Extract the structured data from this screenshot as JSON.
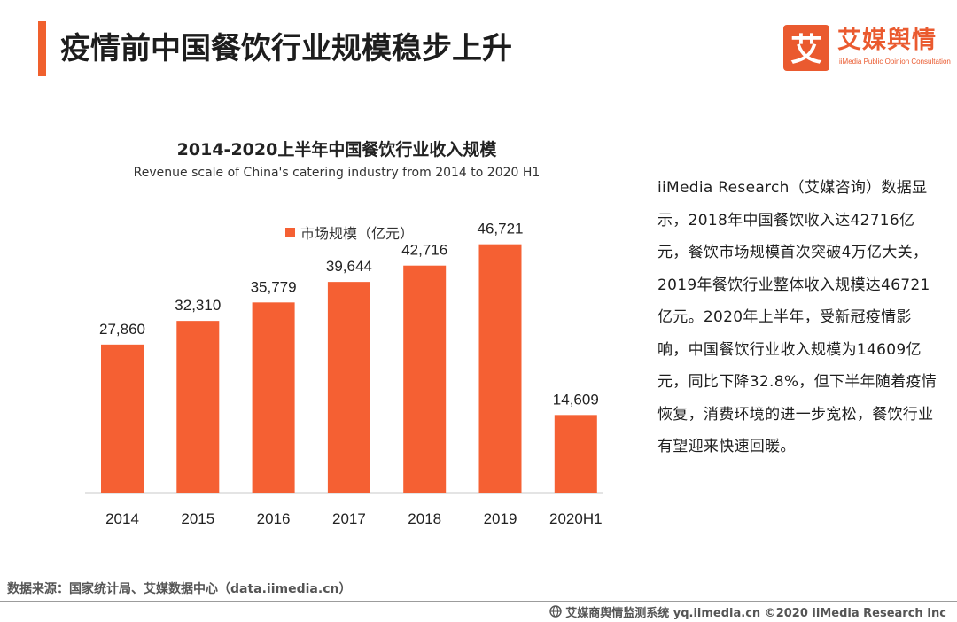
{
  "header": {
    "title": "疫情前中国餐饮行业规模稳步上升",
    "accent_color": "#f0602d"
  },
  "brand": {
    "mark_glyph": "艾",
    "name": "艾媒舆情",
    "tagline": "iiMedia Public Opinion Consultation",
    "color": "#ea5a2f",
    "icon": "iimedia-logo-icon"
  },
  "chart_data": {
    "type": "bar",
    "title": "2014-2020上半年中国餐饮行业收入规模",
    "subtitle": "Revenue scale  of China's catering industry from 2014 to 2020 H1",
    "categories": [
      "2014",
      "2015",
      "2016",
      "2017",
      "2018",
      "2019",
      "2020H1"
    ],
    "series": [
      {
        "name": "市场规模（亿元）",
        "values": [
          27860,
          32310,
          35779,
          39644,
          42716,
          46721,
          14609
        ],
        "labels": [
          "27,860",
          "32,310",
          "35,779",
          "39,644",
          "42,716",
          "46,721",
          "14,609"
        ],
        "color": "#f56033"
      }
    ],
    "xlabel": "",
    "ylabel": "",
    "ylim": [
      0,
      50000
    ],
    "grid": false,
    "legend_position": "top",
    "axis_color": "#c8c8c8"
  },
  "summary": {
    "text": "iiMedia Research（艾媒咨询）数据显示，2018年中国餐饮收入达42716亿元，餐饮市场规模首次突破4万亿大关，2019年餐饮行业整体收入规模达46721亿元。2020年上半年，受新冠疫情影响，中国餐饮行业收入规模为14609亿元，同比下降32.8%，但下半年随着疫情恢复，消费环境的进一步宽松，餐饮行业有望迎来快速回暖。"
  },
  "footer": {
    "source": "数据来源：国家统计局、艾媒数据中心（data.iimedia.cn）",
    "credit": "艾媒商舆情监测系统 yq.iimedia.cn  ©2020  iiMedia Research  Inc",
    "credit_icon": "globe-icon"
  }
}
